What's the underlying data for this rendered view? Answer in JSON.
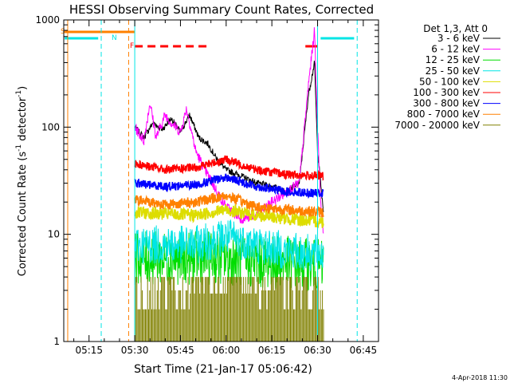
{
  "chart_data": {
    "type": "line",
    "title": "HESSI Observing Summary Count Rates, Corrected",
    "xlabel": "Start Time (21-Jan-17 05:06:42)",
    "ylabel_main": "Corrected Count Rate (s",
    "ylabel_sup1": "-1",
    "ylabel_mid": " detector",
    "ylabel_sup2": "-1",
    "ylabel_end": ")",
    "y_scale": "log",
    "ylim": [
      1,
      1000
    ],
    "xlim_minutes": [
      "05:06:42",
      "06:50:00"
    ],
    "x_ticks": [
      "05:15",
      "05:30",
      "05:45",
      "06:00",
      "06:15",
      "06:30",
      "06:45"
    ],
    "y_ticks": [
      "1",
      "10",
      "100",
      "1000"
    ],
    "legend_title": "Det 1,3, Att 0",
    "legend_position": "right",
    "footer_date": "4-Apr-2018 11:30",
    "flags": [
      {
        "label": "S",
        "color": "#ff8000",
        "time": "05:07",
        "end": "05:30"
      },
      {
        "label": "N",
        "color": "#00e5e5",
        "time": "05:07",
        "end": "05:18"
      },
      {
        "label": "F",
        "color": "#ff0000",
        "time": "05:30",
        "end": "05:54"
      }
    ],
    "series": [
      {
        "name": "3 - 6 keV",
        "color": "#000000",
        "x": [
          "05:30",
          "05:33",
          "05:36",
          "05:39",
          "05:42",
          "05:45",
          "05:48",
          "05:51",
          "05:54",
          "05:57",
          "06:00",
          "06:05",
          "06:10",
          "06:15",
          "06:20",
          "06:24",
          "06:27",
          "06:29",
          "06:30",
          "06:32"
        ],
        "y": [
          100,
          80,
          110,
          95,
          120,
          90,
          130,
          80,
          70,
          50,
          40,
          35,
          30,
          28,
          25,
          30,
          200,
          400,
          60,
          15
        ]
      },
      {
        "name": "6 - 12 keV",
        "color": "#ff00ff",
        "x": [
          "05:30",
          "05:33",
          "05:35",
          "05:37",
          "05:40",
          "05:42",
          "05:45",
          "05:47",
          "05:50",
          "05:53",
          "05:57",
          "06:00",
          "06:05",
          "06:10",
          "06:15",
          "06:20",
          "06:24",
          "06:27",
          "06:29",
          "06:30",
          "06:31",
          "06:32"
        ],
        "y": [
          100,
          75,
          170,
          80,
          130,
          110,
          90,
          150,
          60,
          40,
          25,
          18,
          14,
          15,
          20,
          25,
          30,
          250,
          800,
          100,
          20,
          10
        ]
      },
      {
        "name": "12 - 25 keV",
        "color": "#00dd00",
        "x": [
          "05:30",
          "05:40",
          "05:50",
          "06:00",
          "06:10",
          "06:20",
          "06:32"
        ],
        "y": [
          6,
          6,
          6,
          6,
          5.5,
          5.5,
          5
        ]
      },
      {
        "name": "25 - 50 keV",
        "color": "#00e5e5",
        "x": [
          "05:30",
          "05:40",
          "05:50",
          "06:00",
          "06:10",
          "06:20",
          "06:32"
        ],
        "y": [
          8,
          8,
          8,
          9.5,
          8,
          7,
          6.5
        ]
      },
      {
        "name": "50 - 100 keV",
        "color": "#dddd00",
        "x": [
          "05:30",
          "05:40",
          "05:50",
          "06:00",
          "06:10",
          "06:20",
          "06:32"
        ],
        "y": [
          16,
          15.5,
          15,
          17,
          15,
          14,
          13
        ]
      },
      {
        "name": "100 - 300 keV",
        "color": "#ff0000",
        "x": [
          "05:30",
          "05:40",
          "05:50",
          "06:00",
          "06:10",
          "06:20",
          "06:32"
        ],
        "y": [
          46,
          40,
          42,
          50,
          40,
          36,
          35
        ]
      },
      {
        "name": "300 - 800 keV",
        "color": "#0000ff",
        "x": [
          "05:30",
          "05:40",
          "05:50",
          "06:00",
          "06:10",
          "06:20",
          "06:32"
        ],
        "y": [
          30,
          28,
          29,
          34,
          28,
          25,
          24
        ]
      },
      {
        "name": "800 - 7000 keV",
        "color": "#ff8000",
        "x": [
          "05:30",
          "05:40",
          "05:50",
          "06:00",
          "06:10",
          "06:20",
          "06:32"
        ],
        "y": [
          21,
          19,
          20,
          23,
          18,
          17,
          16
        ]
      },
      {
        "name": "7000 - 20000 keV",
        "color": "#808000",
        "x": [
          "05:30",
          "05:40",
          "05:50",
          "06:00",
          "06:10",
          "06:20",
          "06:32"
        ],
        "y": [
          1.8,
          1.8,
          2,
          2.5,
          1.8,
          1.6,
          1.6
        ]
      }
    ]
  }
}
